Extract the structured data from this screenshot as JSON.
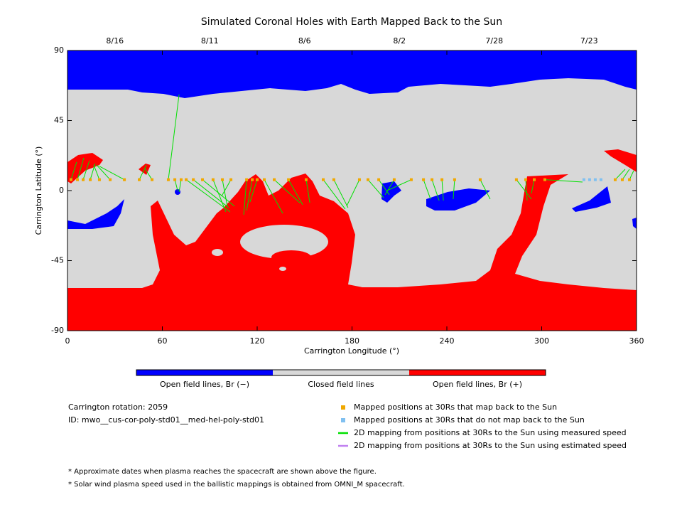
{
  "chart_data": {
    "type": "scatter",
    "title": "Simulated Coronal Holes with Earth Mapped Back to the Sun",
    "xlabel": "Carrington Longitude (°)",
    "ylabel": "Carrington Latitude (°)",
    "xlim": [
      0,
      360
    ],
    "ylim": [
      -90,
      90
    ],
    "xticks": [
      0,
      60,
      120,
      180,
      240,
      300,
      360
    ],
    "yticks": [
      -90,
      -45,
      0,
      45,
      90
    ],
    "x2ticks": [
      {
        "value": 30,
        "label": "8/16"
      },
      {
        "value": 90,
        "label": "8/11"
      },
      {
        "value": 150,
        "label": "8/6"
      },
      {
        "value": 210,
        "label": "8/2"
      },
      {
        "value": 270,
        "label": "7/28"
      },
      {
        "value": 330,
        "label": "7/23"
      }
    ],
    "series": [
      {
        "name": "Mapped positions at 30Rs that map back to the Sun",
        "color": "#f0a800",
        "x": [
          2.2,
          6.3,
          9.9,
          14.4,
          20.2,
          27,
          36,
          45.4,
          53.5,
          63.8,
          67.9,
          71.9,
          75.1,
          79.6,
          85.4,
          92.1,
          98,
          103.4,
          113.3,
          116.9,
          120,
          124.5,
          130.8,
          139.8,
          151,
          161.8,
          168.5,
          184.7,
          190.1,
          196.9,
          206.7,
          217.5,
          225.2,
          230.6,
          236.9,
          244.9,
          261.1,
          284,
          289.9,
          295.3,
          302,
          346.5,
          351,
          355.5
        ],
        "values": [
          7,
          7,
          7,
          7,
          7,
          7,
          7,
          7,
          7,
          7,
          7,
          7,
          7,
          7,
          7,
          7,
          7,
          7,
          7,
          7,
          7,
          7,
          7,
          7,
          7,
          7,
          7,
          7,
          7,
          7,
          7,
          7,
          7,
          7,
          7,
          7,
          7,
          7,
          7,
          7,
          7,
          7,
          7,
          7
        ]
      },
      {
        "name": "Mapped positions at 30Rs that do not map back to the Sun",
        "color": "#80c0f0",
        "x": [
          326.7,
          330.3,
          333.9,
          337.5
        ],
        "values": [
          7,
          7,
          7,
          7
        ]
      },
      {
        "name": "2D mapping from positions at 30Rs to the Sun using measured speed",
        "color": "#00e000",
        "x": [
          5.8,
          10.3,
          13.9,
          17.5,
          16.6,
          18.4,
          20.2,
          49.9,
          49,
          70.6,
          69.7,
          70.6,
          102.9,
          102,
          105.6,
          100.2,
          101.1,
          97.5,
          111.5,
          113.3,
          115.5,
          136.2,
          147,
          148.8,
          153.3,
          175.7,
          177.5,
          176.6,
          200,
          203.6,
          200.9,
          202.2,
          229.7,
          235.1,
          237.8,
          244,
          267.4,
          293.5,
          290.8,
          293.5,
          325.8,
          352.8,
          355.5,
          358.2
        ],
        "values": [
          18.3,
          21,
          19.2,
          17.4,
          16.5,
          16.5,
          15.6,
          16.4,
          14.1,
          61.7,
          0,
          -0.9,
          -13.7,
          -11,
          -10,
          -13.7,
          -10,
          -3.6,
          -15.5,
          -12.8,
          -7.3,
          -14.6,
          -7.8,
          -9.1,
          -7.8,
          -11.9,
          -11,
          -10,
          -4.6,
          -2.7,
          -2.7,
          0,
          -5.5,
          -6.4,
          -6.4,
          -5.5,
          -5.5,
          -5.5,
          -6.4,
          -1.8,
          5.5,
          13.7,
          13.7,
          12.8
        ]
      },
      {
        "name": "2D mapping from positions at 30Rs to the Sun using estimated speed",
        "color": "#c080f0",
        "x": [],
        "values": []
      }
    ],
    "colorbar": {
      "labels": [
        "Open field lines, Br (−)",
        "Closed field lines",
        "Open field lines, Br (+)"
      ],
      "colors": [
        "#0000ff",
        "#d8d8d8",
        "#ff0000"
      ]
    },
    "info": [
      "Carrington rotation: 2059",
      "ID: mwo__cus-cor-poly-std01__med-hel-poly-std01"
    ],
    "notes": [
      "* Approximate dates when plasma reaches the spacecraft are shown above the figure.",
      "* Solar wind plasma speed used in the ballistic mappings is obtained from OMNI_M spacecraft."
    ]
  }
}
